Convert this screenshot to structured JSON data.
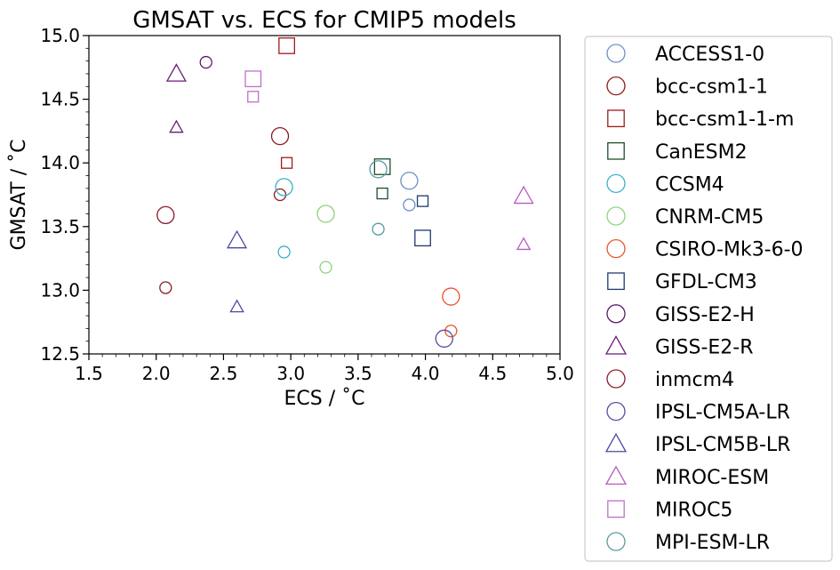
{
  "chart_data": {
    "type": "scatter",
    "title": "GMSAT vs. ECS for CMIP5 models",
    "xlabel": "ECS / $^\\circ$C",
    "xlabel_text": "ECS /  ˚C",
    "ylabel_text": "GMSAT /  ˚C",
    "xlim": [
      1.5,
      5.0
    ],
    "ylim": [
      12.5,
      15.0
    ],
    "xticks": [
      "1.5",
      "2.0",
      "2.5",
      "3.0",
      "3.5",
      "4.0",
      "4.5",
      "5.0"
    ],
    "yticks": [
      "12.5",
      "13.0",
      "13.5",
      "14.0",
      "14.5",
      "15.0"
    ],
    "grid": false,
    "legend_position": "outside-right",
    "series": [
      {
        "name": "ACCESS1-0",
        "marker": "circle",
        "color": "#6b8fc7",
        "points": [
          {
            "x": 3.88,
            "y": 13.86,
            "s": "large"
          },
          {
            "x": 3.88,
            "y": 13.67,
            "s": "small"
          }
        ]
      },
      {
        "name": "bcc-csm1-1",
        "marker": "circle",
        "color": "#8b1a1a",
        "points": [
          {
            "x": 2.92,
            "y": 14.21,
            "s": "large"
          },
          {
            "x": 2.92,
            "y": 13.75,
            "s": "small"
          }
        ]
      },
      {
        "name": "bcc-csm1-1-m",
        "marker": "square",
        "color": "#a01a1a",
        "points": [
          {
            "x": 2.97,
            "y": 14.92,
            "s": "large"
          },
          {
            "x": 2.97,
            "y": 14.0,
            "s": "small"
          }
        ]
      },
      {
        "name": "CanESM2",
        "marker": "square",
        "color": "#1e4d2b",
        "points": [
          {
            "x": 3.68,
            "y": 13.97,
            "s": "large"
          },
          {
            "x": 3.68,
            "y": 13.76,
            "s": "small"
          }
        ]
      },
      {
        "name": "CCSM4",
        "marker": "circle",
        "color": "#3ab0c8",
        "points": [
          {
            "x": 2.95,
            "y": 13.81,
            "s": "large"
          },
          {
            "x": 2.95,
            "y": 13.3,
            "s": "small"
          }
        ]
      },
      {
        "name": "CNRM-CM5",
        "marker": "circle",
        "color": "#8fd17a",
        "points": [
          {
            "x": 3.26,
            "y": 13.6,
            "s": "large"
          },
          {
            "x": 3.26,
            "y": 13.18,
            "s": "small"
          }
        ]
      },
      {
        "name": "CSIRO-Mk3-6-0",
        "marker": "circle",
        "color": "#e8532b",
        "points": [
          {
            "x": 4.19,
            "y": 12.95,
            "s": "large"
          },
          {
            "x": 4.19,
            "y": 12.68,
            "s": "small"
          }
        ]
      },
      {
        "name": "GFDL-CM3",
        "marker": "square",
        "color": "#1f3a6e",
        "points": [
          {
            "x": 3.98,
            "y": 13.41,
            "s": "large"
          },
          {
            "x": 3.98,
            "y": 13.7,
            "s": "small"
          }
        ]
      },
      {
        "name": "GISS-E2-H",
        "marker": "circle",
        "color": "#5a1a6e",
        "points": [
          {
            "x": 2.37,
            "y": 14.79,
            "s": "small"
          }
        ]
      },
      {
        "name": "GISS-E2-R",
        "marker": "triangle",
        "color": "#6a1a7a",
        "points": [
          {
            "x": 2.15,
            "y": 14.7,
            "s": "large"
          },
          {
            "x": 2.15,
            "y": 14.28,
            "s": "small"
          }
        ]
      },
      {
        "name": "inmcm4",
        "marker": "circle",
        "color": "#8b1a2a",
        "points": [
          {
            "x": 2.07,
            "y": 13.59,
            "s": "large"
          },
          {
            "x": 2.07,
            "y": 13.02,
            "s": "small"
          }
        ]
      },
      {
        "name": "IPSL-CM5A-LR",
        "marker": "circle",
        "color": "#5a4a9e",
        "points": [
          {
            "x": 4.14,
            "y": 12.62,
            "s": "large"
          }
        ]
      },
      {
        "name": "IPSL-CM5B-LR",
        "marker": "triangle",
        "color": "#4a4aa0",
        "points": [
          {
            "x": 2.6,
            "y": 13.39,
            "s": "large"
          },
          {
            "x": 2.6,
            "y": 12.87,
            "s": "small"
          }
        ]
      },
      {
        "name": "MIROC-ESM",
        "marker": "triangle",
        "color": "#b85cc0",
        "points": [
          {
            "x": 4.73,
            "y": 13.74,
            "s": "large"
          },
          {
            "x": 4.73,
            "y": 13.36,
            "s": "small"
          }
        ]
      },
      {
        "name": "MIROC5",
        "marker": "square",
        "color": "#c070c8",
        "points": [
          {
            "x": 2.72,
            "y": 14.66,
            "s": "large"
          },
          {
            "x": 2.72,
            "y": 14.52,
            "s": "small"
          }
        ]
      },
      {
        "name": "MPI-ESM-LR",
        "marker": "circle",
        "color": "#5a9aa0",
        "points": [
          {
            "x": 3.65,
            "y": 13.95,
            "s": "large"
          },
          {
            "x": 3.65,
            "y": 13.48,
            "s": "small"
          }
        ]
      }
    ]
  }
}
